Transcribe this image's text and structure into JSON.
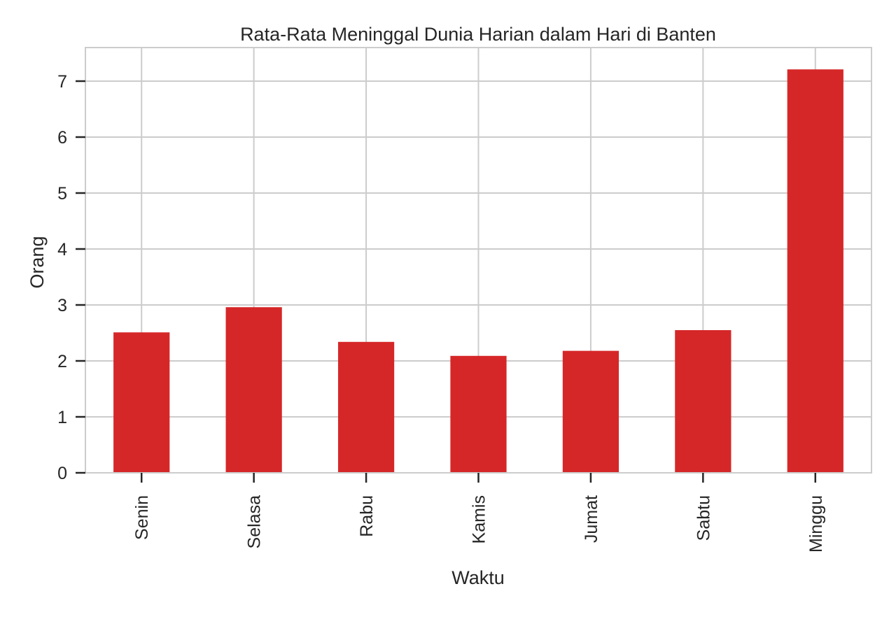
{
  "chart_data": {
    "type": "bar",
    "title": "Rata-Rata Meninggal Dunia Harian dalam Hari di Banten",
    "xlabel": "Waktu",
    "ylabel": "Orang",
    "categories": [
      "Senin",
      "Selasa",
      "Rabu",
      "Kamis",
      "Jumat",
      "Sabtu",
      "Minggu"
    ],
    "values": [
      2.51,
      2.96,
      2.34,
      2.09,
      2.18,
      2.55,
      7.21
    ],
    "ylim": [
      0,
      7.6
    ],
    "yticks": [
      0,
      1,
      2,
      3,
      4,
      5,
      6,
      7
    ],
    "grid": true,
    "bar_color": "#d62728",
    "grid_color": "#cccccc",
    "axes_edge_color": "#cccccc"
  }
}
